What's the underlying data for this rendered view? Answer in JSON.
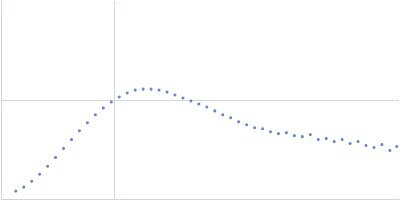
{
  "chart_data": {
    "type": "scatter",
    "color": "#3d69b8",
    "marker": "circle",
    "grid": true,
    "tick_labels": false,
    "xlim": [
      0,
      0.35
    ],
    "xticks": [
      0.1
    ],
    "ylim": [
      0,
      2
    ],
    "yticks": [
      1
    ],
    "x": [
      0.013,
      0.02,
      0.027,
      0.034,
      0.041,
      0.048,
      0.055,
      0.062,
      0.069,
      0.076,
      0.083,
      0.09,
      0.097,
      0.104,
      0.111,
      0.118,
      0.125,
      0.132,
      0.139,
      0.146,
      0.153,
      0.16,
      0.167,
      0.174,
      0.181,
      0.188,
      0.195,
      0.202,
      0.209,
      0.216,
      0.223,
      0.23,
      0.237,
      0.244,
      0.251,
      0.258,
      0.265,
      0.272,
      0.279,
      0.286,
      0.293,
      0.3,
      0.307,
      0.314,
      0.321,
      0.328,
      0.335,
      0.342,
      0.348
    ],
    "values": [
      0.08,
      0.12,
      0.18,
      0.25,
      0.33,
      0.42,
      0.51,
      0.6,
      0.69,
      0.77,
      0.85,
      0.92,
      0.98,
      1.03,
      1.07,
      1.1,
      1.11,
      1.11,
      1.1,
      1.08,
      1.05,
      1.02,
      0.99,
      0.96,
      0.93,
      0.89,
      0.85,
      0.82,
      0.78,
      0.75,
      0.72,
      0.71,
      0.68,
      0.66,
      0.67,
      0.64,
      0.63,
      0.65,
      0.6,
      0.61,
      0.58,
      0.6,
      0.56,
      0.58,
      0.54,
      0.52,
      0.55,
      0.49,
      0.53
    ]
  }
}
